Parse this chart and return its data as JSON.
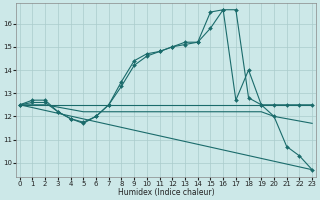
{
  "xlabel": "Humidex (Indice chaleur)",
  "bg_color": "#cce8e8",
  "grid_color": "#aacccc",
  "line_color": "#1a6b6b",
  "x_ticks": [
    0,
    1,
    2,
    3,
    4,
    5,
    6,
    7,
    8,
    9,
    10,
    11,
    12,
    13,
    14,
    15,
    16,
    17,
    18,
    19,
    20,
    21,
    22,
    23
  ],
  "y_ticks": [
    10,
    11,
    12,
    13,
    14,
    15,
    16
  ],
  "xlim": [
    -0.3,
    23.3
  ],
  "ylim": [
    9.4,
    16.9
  ],
  "series": [
    {
      "x": [
        0,
        1,
        2,
        3,
        4,
        5,
        6,
        7,
        8,
        9,
        10,
        11,
        12,
        13,
        14,
        15,
        16,
        17,
        18,
        19,
        20,
        21,
        22,
        23
      ],
      "y": [
        12.5,
        12.7,
        12.7,
        12.2,
        11.9,
        11.7,
        12.0,
        12.5,
        13.5,
        14.4,
        14.7,
        14.8,
        15.0,
        15.2,
        15.2,
        15.8,
        16.6,
        16.6,
        12.8,
        12.5,
        12.5,
        12.5,
        12.5,
        12.5
      ],
      "marker": true,
      "markersize": 2.0
    },
    {
      "x": [
        0,
        1,
        2,
        3,
        4,
        5,
        6,
        7,
        8,
        9,
        10,
        11,
        12,
        13,
        14,
        15,
        16,
        17,
        18,
        19,
        20,
        21,
        22,
        23
      ],
      "y": [
        12.5,
        12.5,
        12.5,
        12.5,
        12.5,
        12.5,
        12.5,
        12.5,
        12.5,
        12.5,
        12.5,
        12.5,
        12.5,
        12.5,
        12.5,
        12.5,
        12.5,
        12.5,
        12.5,
        12.5,
        12.5,
        12.5,
        12.5,
        12.5
      ],
      "marker": false,
      "markersize": 0
    },
    {
      "x": [
        0,
        1,
        2,
        3,
        4,
        5,
        6,
        7,
        8,
        9,
        10,
        11,
        12,
        13,
        14,
        15,
        16,
        17,
        18,
        19,
        20,
        21,
        22,
        23
      ],
      "y": [
        12.5,
        12.6,
        12.6,
        12.2,
        11.9,
        11.75,
        12.0,
        12.5,
        13.3,
        14.2,
        14.6,
        14.8,
        15.0,
        15.1,
        15.2,
        16.5,
        16.6,
        12.7,
        14.0,
        12.5,
        12.0,
        10.7,
        10.3,
        9.7
      ],
      "marker": true,
      "markersize": 2.0
    },
    {
      "x": [
        0,
        23
      ],
      "y": [
        12.5,
        9.7
      ],
      "marker": false,
      "markersize": 0
    },
    {
      "x": [
        0,
        1,
        2,
        3,
        4,
        5,
        6,
        7,
        8,
        9,
        10,
        11,
        12,
        13,
        14,
        15,
        16,
        17,
        18,
        19,
        20,
        21,
        22,
        23
      ],
      "y": [
        12.5,
        12.5,
        12.5,
        12.4,
        12.3,
        12.2,
        12.2,
        12.2,
        12.2,
        12.2,
        12.2,
        12.2,
        12.2,
        12.2,
        12.2,
        12.2,
        12.2,
        12.2,
        12.2,
        12.2,
        12.0,
        11.9,
        11.8,
        11.7
      ],
      "marker": false,
      "markersize": 0
    }
  ]
}
